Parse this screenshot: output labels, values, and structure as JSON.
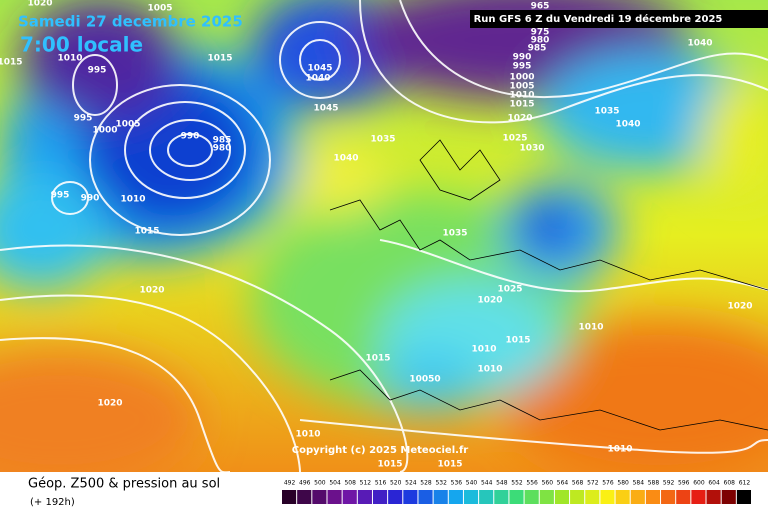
{
  "header": {
    "date": "Samedi 27 decembre 2025",
    "time": "7:00 locale",
    "run": "Run GFS 6 Z du Vendredi 19 décembre 2025"
  },
  "copyright": "Copyright (c) 2025 Meteociel.fr",
  "legend": {
    "title": "Géop. Z500 & pression au sol",
    "lead": "(+ 192h)",
    "ticks": [
      492,
      496,
      500,
      504,
      508,
      512,
      516,
      520,
      524,
      528,
      532,
      536,
      540,
      544,
      548,
      552,
      556,
      560,
      564,
      568,
      572,
      576,
      580,
      584,
      588,
      592,
      596,
      600,
      604,
      608,
      612
    ]
  },
  "isobar_labels": [
    "1020",
    "1005",
    "1010",
    "995",
    "1015",
    "1015",
    "995",
    "1000",
    "1005",
    "990",
    "985",
    "980",
    "995",
    "990",
    "1010",
    "1015",
    "1020",
    "1040",
    "1035",
    "1045",
    "1040",
    "1045",
    "965",
    "975",
    "980",
    "985",
    "990",
    "995",
    "1000",
    "1005",
    "1010",
    "1015",
    "1020",
    "1025",
    "1030",
    "1035",
    "1040",
    "1040",
    "1035",
    "1025",
    "1020",
    "1015",
    "1010",
    "1010",
    "1015",
    "10050",
    "1010",
    "1020",
    "1020",
    "1010",
    "1015",
    "1015",
    "1010"
  ]
}
